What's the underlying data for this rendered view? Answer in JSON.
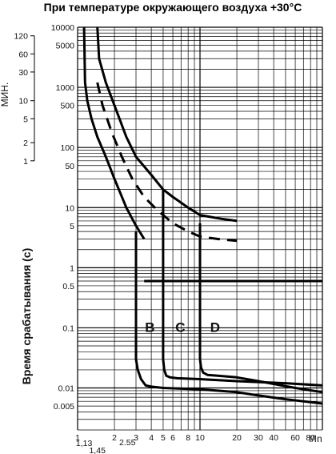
{
  "chart_data": {
    "type": "line",
    "title": "При температуре окружающего воздуха  +30°C",
    "xlabel": "I/In",
    "ylabel": "Время срабатывания (с)",
    "minutes_label": "МИН.",
    "x_scale": "log",
    "y_scale": "log",
    "xlim": [
      1,
      100
    ],
    "ylim": [
      0.002,
      10000
    ],
    "x_ticks": [
      "1",
      "2",
      "3",
      "4",
      "5",
      "6",
      "8",
      "10",
      "20",
      "30",
      "40",
      "60",
      "80"
    ],
    "x_ticks_extra": [
      "1,13",
      "1,45",
      "2.55"
    ],
    "y_ticks_seconds": [
      "10000",
      "5000",
      "1000",
      "500",
      "100",
      "50",
      "10",
      "5",
      "1",
      "0.5",
      "0.1",
      "0.01",
      "0.005"
    ],
    "y_ticks_minutes": [
      "120",
      "60",
      "30",
      "10",
      "5",
      "2",
      "1"
    ],
    "curve_labels": [
      "B",
      "C",
      "D"
    ],
    "series": [
      {
        "id": "thermal-lower",
        "style": "solid",
        "x": [
          1.13,
          1.15,
          1.2,
          1.3,
          1.45,
          1.7,
          2.0,
          2.5,
          3.0,
          3.5
        ],
        "y": [
          10000,
          1200,
          600,
          300,
          150,
          70,
          30,
          10,
          5,
          3
        ]
      },
      {
        "id": "thermal-upper",
        "style": "solid",
        "x": [
          1.45,
          1.5,
          1.7,
          2.0,
          2.5,
          3.0,
          4.0,
          5.0,
          6.0,
          8.0,
          10.0,
          15.0,
          20.0
        ],
        "y": [
          10000,
          3000,
          1200,
          500,
          150,
          70,
          35,
          20,
          15,
          10,
          7.5,
          6.5,
          6
        ]
      },
      {
        "id": "thermal-dashed",
        "style": "dashed",
        "x": [
          1.45,
          1.6,
          1.9,
          2.3,
          2.8,
          3.5,
          4.5,
          6.0,
          8.0,
          10.0,
          14.0,
          20.0
        ],
        "y": [
          1200,
          500,
          180,
          70,
          30,
          15,
          9,
          5.5,
          4,
          3.3,
          3.0,
          2.8
        ]
      },
      {
        "id": "B",
        "style": "solid",
        "x": [
          3.0,
          3.0,
          3.1,
          3.3,
          3.6,
          4.0,
          5.0,
          10.0,
          20.0,
          30.0,
          50.0,
          100.0
        ],
        "y": [
          4,
          0.03,
          0.02,
          0.014,
          0.011,
          0.0105,
          0.01,
          0.0095,
          0.0085,
          0.0075,
          0.0065,
          0.0055
        ]
      },
      {
        "id": "C",
        "style": "solid",
        "x": [
          5.0,
          5.0,
          5.1,
          5.3,
          5.7,
          6.5,
          10.0,
          20.0,
          50.0,
          100.0
        ],
        "y": [
          20,
          0.03,
          0.02,
          0.016,
          0.015,
          0.0145,
          0.014,
          0.013,
          0.012,
          0.011
        ]
      },
      {
        "id": "D",
        "style": "solid",
        "x": [
          10.0,
          10.0,
          10.2,
          10.6,
          11.5,
          14.0,
          20.0,
          30.0,
          60.0,
          100.0
        ],
        "y": [
          5.5,
          0.03,
          0.022,
          0.018,
          0.0165,
          0.016,
          0.015,
          0.013,
          0.01,
          0.0085
        ]
      },
      {
        "id": "lower-right",
        "style": "solid",
        "x": [
          3.5,
          5.0,
          10.0,
          20.0,
          50.0,
          100.0
        ],
        "y": [
          0.6,
          0.6,
          0.6,
          0.6,
          0.6,
          0.6
        ]
      }
    ]
  }
}
